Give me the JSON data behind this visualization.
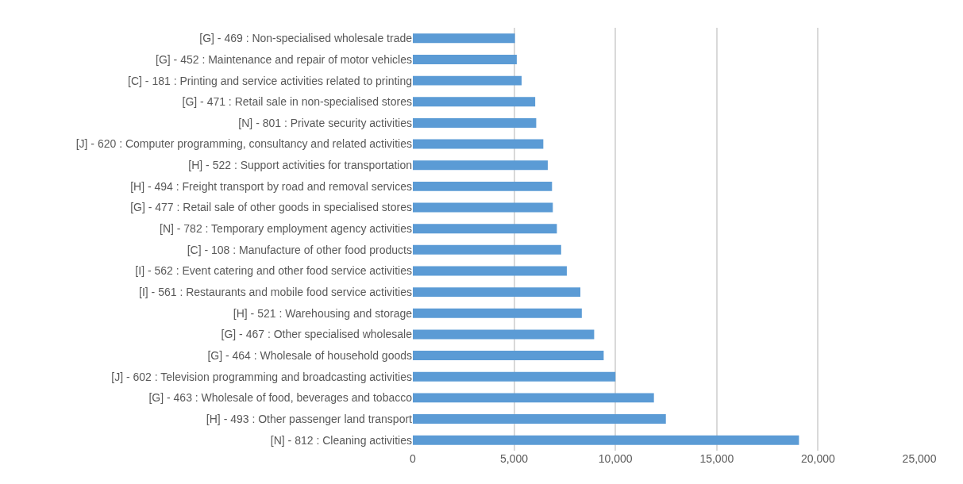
{
  "chart_data": {
    "type": "bar",
    "orientation": "horizontal",
    "categories": [
      "[G] - 469 : Non-specialised wholesale trade",
      "[G] - 452 : Maintenance and repair of motor vehicles",
      "[C] - 181 : Printing and service activities related to printing",
      "[G] - 471 : Retail sale in non-specialised stores",
      "[N] - 801 : Private security activities",
      "[J] - 620 : Computer programming, consultancy and related activities",
      "[H] - 522 : Support activities for transportation",
      "[H] - 494 : Freight transport by road and removal services",
      "[G] - 477 : Retail sale of other goods in specialised stores",
      "[N] - 782 : Temporary employment agency activities",
      "[C] - 108 : Manufacture of other food products",
      "[I] - 562 : Event catering and other food service activities",
      "[I] - 561 : Restaurants and mobile food service activities",
      "[H] - 521 : Warehousing and storage",
      "[G] - 467 : Other specialised wholesale",
      "[G] - 464 : Wholesale of household goods",
      "[J] - 602 : Television programming and broadcasting activities",
      "[G] - 463 : Wholesale of food, beverages and tobacco",
      "[H] - 493 : Other passenger land transport",
      "[N] - 812 : Cleaning activities"
    ],
    "values": [
      5040,
      5130,
      5370,
      6040,
      6090,
      6440,
      6660,
      6870,
      6910,
      7110,
      7320,
      7600,
      8270,
      8340,
      8950,
      9420,
      10000,
      11900,
      12490,
      19060
    ],
    "color": "#5b9bd5",
    "xlim": [
      0,
      25000
    ],
    "xticks": [
      {
        "value": 0,
        "label": "0"
      },
      {
        "value": 5000,
        "label": "5,000"
      },
      {
        "value": 10000,
        "label": "10,000"
      },
      {
        "value": 15000,
        "label": "15,000"
      },
      {
        "value": 20000,
        "label": "20,000"
      },
      {
        "value": 25000,
        "label": "25,000"
      }
    ],
    "grid": "x"
  }
}
